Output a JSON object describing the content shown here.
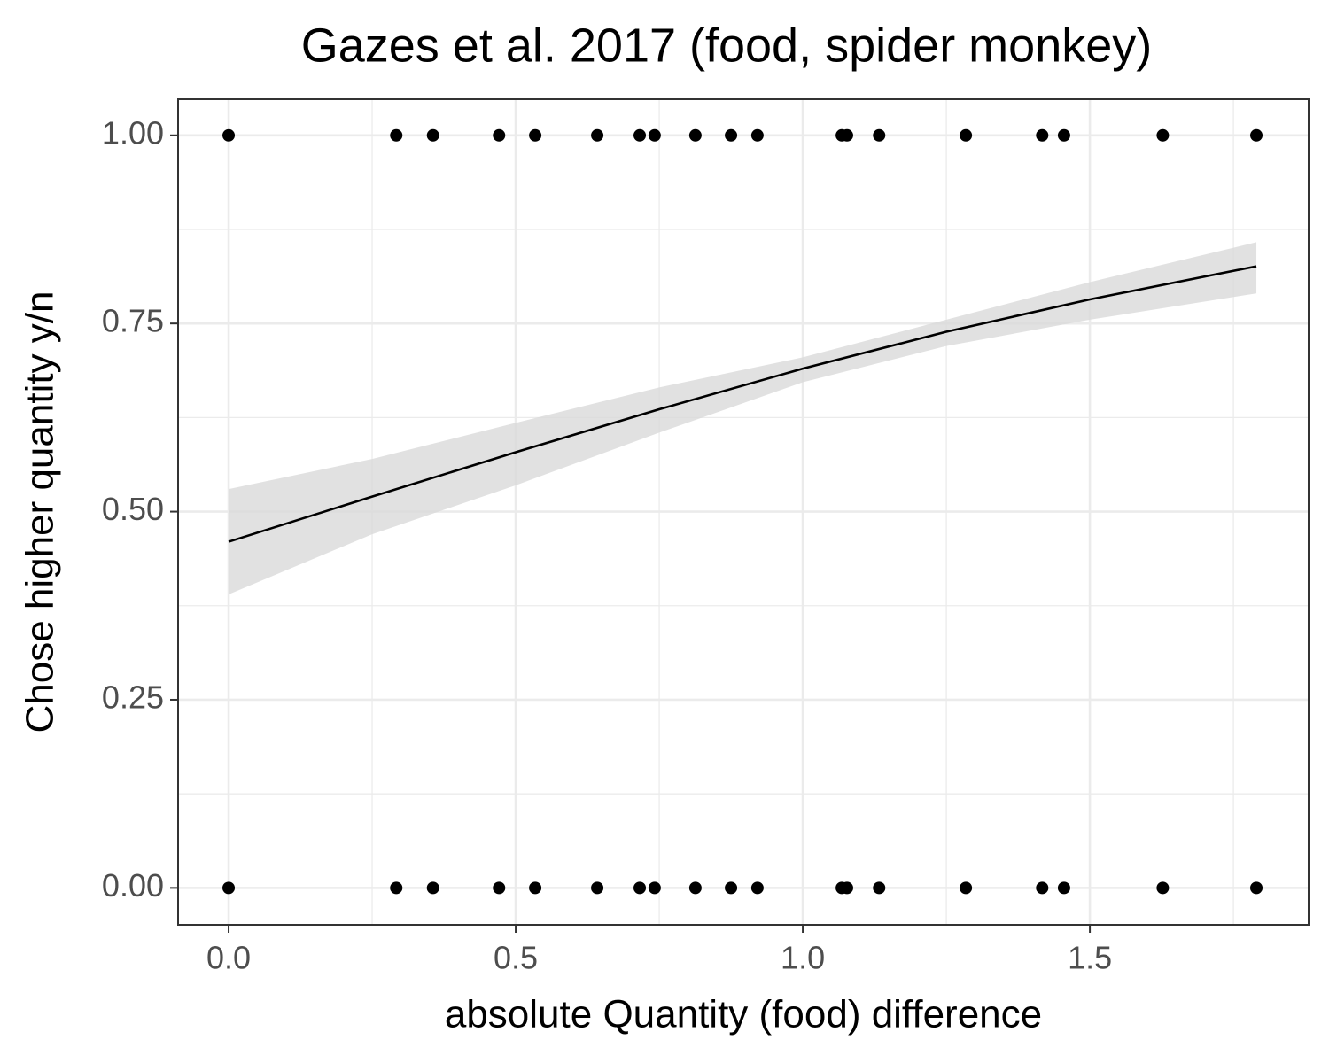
{
  "chart_data": {
    "type": "scatter",
    "title": "Gazes et al. 2017 (food, spider monkey)",
    "x_label": "absolute Quantity (food) difference",
    "y_label": "Chose higher quantity y/n",
    "x": [
      0,
      0.292,
      0.356,
      0.471,
      0.534,
      0.642,
      0.716,
      0.742,
      0.813,
      0.875,
      0.921,
      1.068,
      1.077,
      1.133,
      1.284,
      1.417,
      1.455,
      1.627,
      1.79,
      0,
      0.292,
      0.356,
      0.471,
      0.534,
      0.642,
      0.716,
      0.742,
      0.813,
      0.875,
      0.921,
      1.068,
      1.077,
      1.133,
      1.284,
      1.417,
      1.455,
      1.627,
      1.79
    ],
    "y": [
      1,
      1,
      1,
      1,
      1,
      1,
      1,
      1,
      1,
      1,
      1,
      1,
      1,
      1,
      1,
      1,
      1,
      1,
      1,
      0,
      0,
      0,
      0,
      0,
      0,
      0,
      0,
      0,
      0,
      0,
      0,
      0,
      0,
      0,
      0,
      0,
      0,
      0
    ],
    "color": "#000000",
    "fit": {
      "x": [
        0,
        0.25,
        0.5,
        0.75,
        1.0,
        1.25,
        1.5,
        1.79
      ],
      "y": [
        0.46,
        0.52,
        0.579,
        0.636,
        0.69,
        0.739,
        0.782,
        0.826
      ],
      "lower": [
        0.39,
        0.47,
        0.535,
        0.605,
        0.672,
        0.72,
        0.755,
        0.79
      ],
      "upper": [
        0.53,
        0.57,
        0.618,
        0.665,
        0.705,
        0.755,
        0.805,
        0.858
      ],
      "color": "#000000",
      "band_color": "#d9d9d9"
    },
    "xlim": [
      -0.088,
      1.881
    ],
    "ylim": [
      -0.049,
      1.048
    ],
    "xticks": [
      {
        "value": 0,
        "label": "0.0"
      },
      {
        "value": 0.5,
        "label": "0.5"
      },
      {
        "value": 1,
        "label": "1.0"
      },
      {
        "value": 1.5,
        "label": "1.5"
      }
    ],
    "yticks": [
      {
        "value": 0,
        "label": "0.00"
      },
      {
        "value": 0.25,
        "label": "0.25"
      },
      {
        "value": 0.5,
        "label": "0.50"
      },
      {
        "value": 0.75,
        "label": "0.75"
      },
      {
        "value": 1,
        "label": "1.00"
      }
    ],
    "x_minor_ticks": [
      0.25,
      0.75,
      1.25,
      1.75
    ],
    "y_minor_ticks": [
      0.125,
      0.375,
      0.625,
      0.875
    ],
    "grid": true
  }
}
